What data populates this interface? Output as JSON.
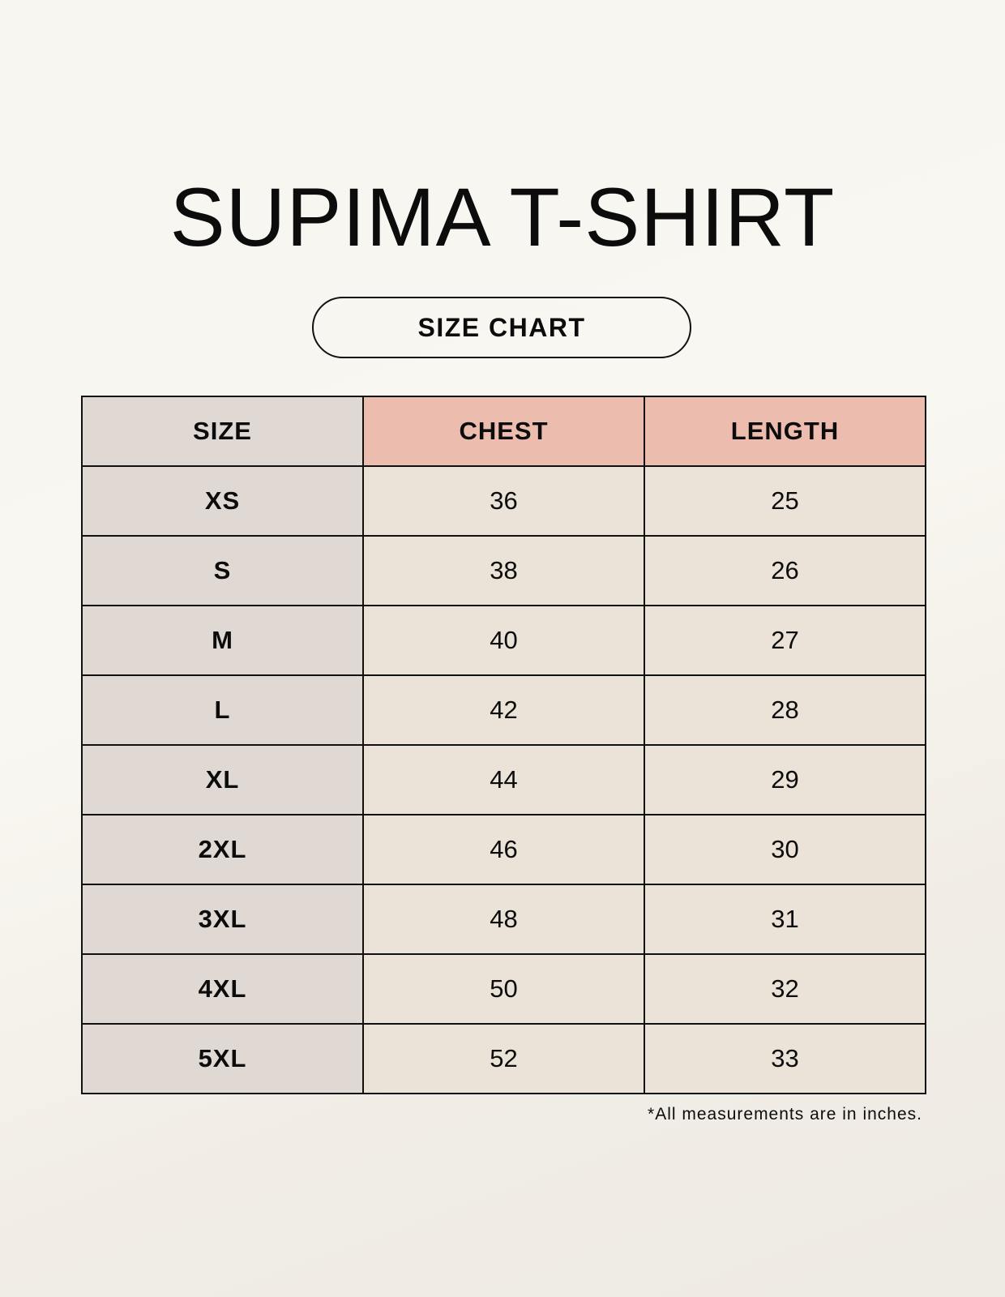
{
  "title": "SUPIMA T-SHIRT",
  "subtitle": "SIZE CHART",
  "colors": {
    "size_column": "#e0d9d3",
    "header_accent": "#ecbcae",
    "value_cells": "#ebe2d8"
  },
  "table": {
    "headers": [
      "SIZE",
      "CHEST",
      "LENGTH"
    ],
    "rows": [
      [
        "XS",
        "36",
        "25"
      ],
      [
        "S",
        "38",
        "26"
      ],
      [
        "M",
        "40",
        "27"
      ],
      [
        "L",
        "42",
        "28"
      ],
      [
        "XL",
        "44",
        "29"
      ],
      [
        "2XL",
        "46",
        "30"
      ],
      [
        "3XL",
        "48",
        "31"
      ],
      [
        "4XL",
        "50",
        "32"
      ],
      [
        "5XL",
        "52",
        "33"
      ]
    ]
  },
  "footnote": "*All measurements are in inches."
}
